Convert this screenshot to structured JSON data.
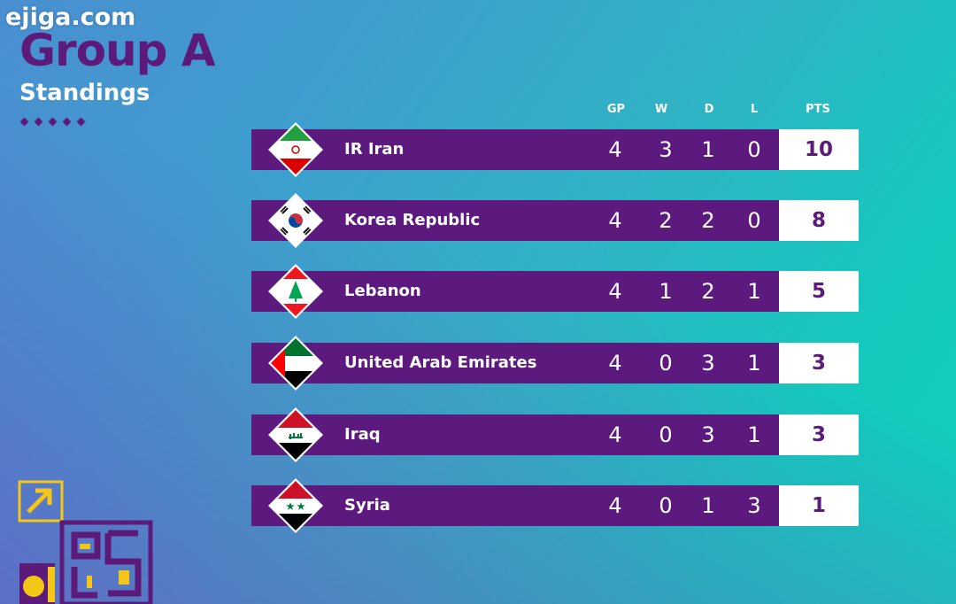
{
  "watermark": "ejiga.com",
  "header": {
    "title": "Group A",
    "subtitle": "Standings"
  },
  "columns": {
    "gp": "GP",
    "w": "W",
    "d": "D",
    "l": "L",
    "pts": "PTS"
  },
  "rows": [
    {
      "team": "IR Iran",
      "gp": "4",
      "w": "3",
      "d": "1",
      "l": "0",
      "pts": "10",
      "flag": "iran-flag-icon"
    },
    {
      "team": "Korea Republic",
      "gp": "4",
      "w": "2",
      "d": "2",
      "l": "0",
      "pts": "8",
      "flag": "korea-flag-icon"
    },
    {
      "team": "Lebanon",
      "gp": "4",
      "w": "1",
      "d": "2",
      "l": "1",
      "pts": "5",
      "flag": "lebanon-flag-icon"
    },
    {
      "team": "United Arab Emirates",
      "gp": "4",
      "w": "0",
      "d": "3",
      "l": "1",
      "pts": "3",
      "flag": "uae-flag-icon"
    },
    {
      "team": "Iraq",
      "gp": "4",
      "w": "0",
      "d": "3",
      "l": "1",
      "pts": "3",
      "flag": "iraq-flag-icon"
    },
    {
      "team": "Syria",
      "gp": "4",
      "w": "0",
      "d": "1",
      "l": "3",
      "pts": "1",
      "flag": "syria-flag-icon"
    }
  ],
  "colors": {
    "purple": "#5d1a7e",
    "accent_yellow": "#f5c518",
    "white": "#ffffff"
  }
}
